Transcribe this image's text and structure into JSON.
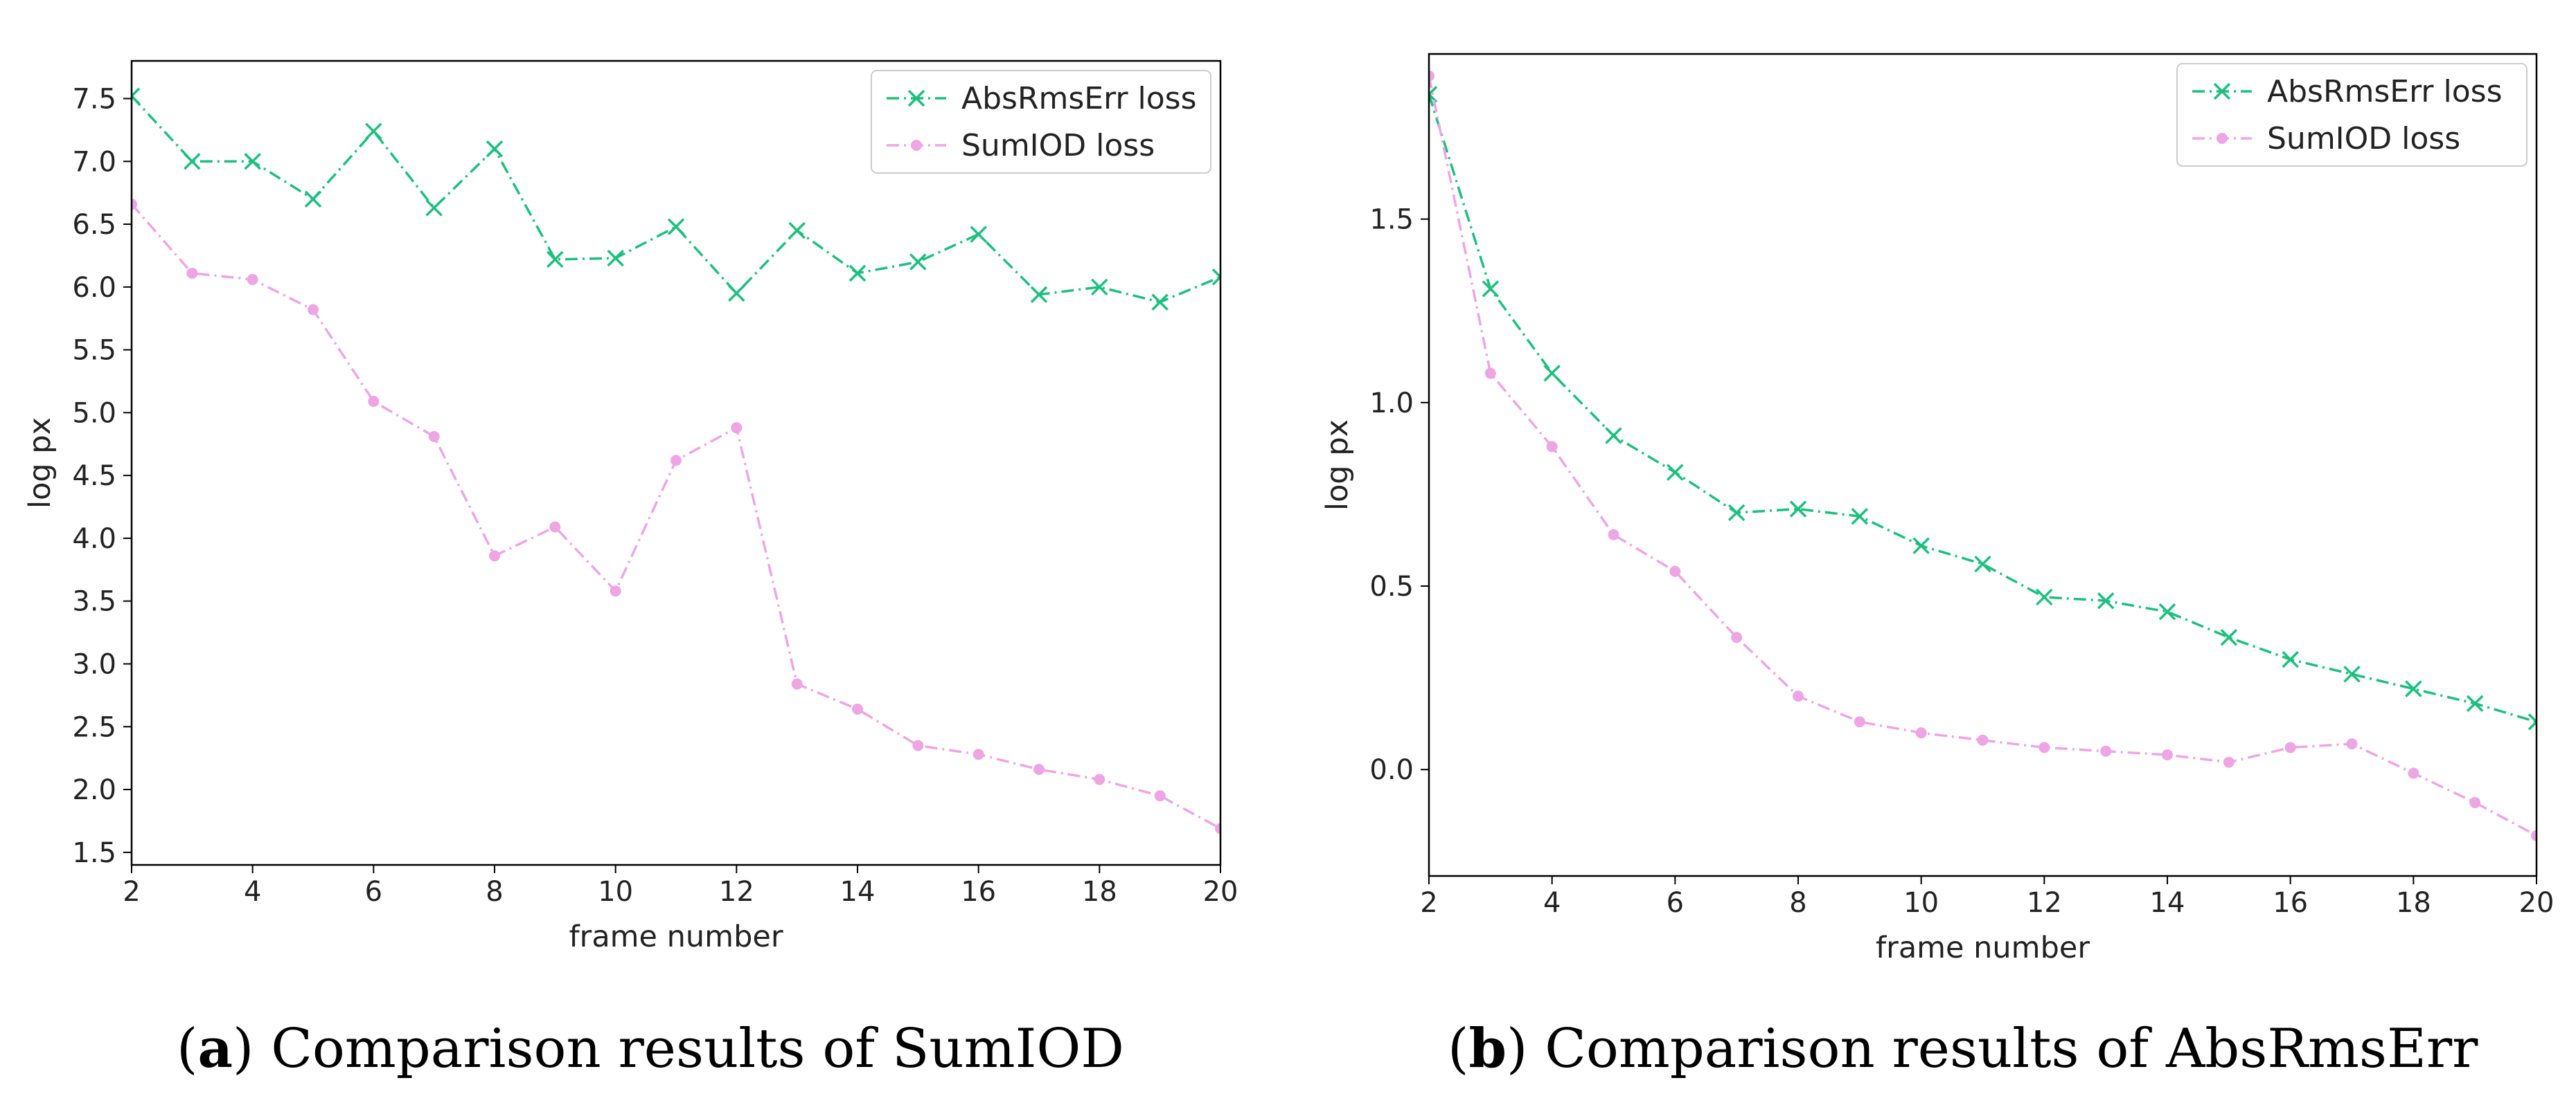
{
  "chart_data": [
    {
      "type": "line",
      "title": "",
      "xlabel": "frame number",
      "ylabel": "log px",
      "xlim": [
        2,
        20
      ],
      "ylim": [
        1.4,
        7.8
      ],
      "xticks": [
        2,
        4,
        6,
        8,
        10,
        12,
        14,
        16,
        18,
        20
      ],
      "yticks": [
        1.5,
        2.0,
        2.5,
        3.0,
        3.5,
        4.0,
        4.5,
        5.0,
        5.5,
        6.0,
        6.5,
        7.0,
        7.5
      ],
      "ytick_decimals": 1,
      "x": [
        2,
        3,
        4,
        5,
        6,
        7,
        8,
        9,
        10,
        11,
        12,
        13,
        14,
        15,
        16,
        17,
        18,
        19,
        20
      ],
      "legend_position": "top-right",
      "series": [
        {
          "name": "AbsRmsErr loss",
          "color": "#1dbf7e",
          "marker": "x",
          "values": [
            7.52,
            7.0,
            7.0,
            6.7,
            7.24,
            6.63,
            7.1,
            6.22,
            6.23,
            6.48,
            5.95,
            6.45,
            6.11,
            6.2,
            6.42,
            5.94,
            6.0,
            5.88,
            6.08
          ]
        },
        {
          "name": "SumIOD loss",
          "color": "#eda6e3",
          "marker": "o",
          "values": [
            6.66,
            6.11,
            6.06,
            5.82,
            5.09,
            4.81,
            3.86,
            4.09,
            3.58,
            4.62,
            4.88,
            2.84,
            2.64,
            2.35,
            2.28,
            2.16,
            2.08,
            1.95,
            1.69
          ]
        }
      ],
      "caption": {
        "letter": "a",
        "text": "Comparison results of SumIOD"
      }
    },
    {
      "type": "line",
      "title": "",
      "xlabel": "frame number",
      "ylabel": "log px",
      "xlim": [
        2,
        20
      ],
      "ylim": [
        -0.29,
        1.95
      ],
      "xticks": [
        2,
        4,
        6,
        8,
        10,
        12,
        14,
        16,
        18,
        20
      ],
      "yticks": [
        0.0,
        0.5,
        1.0,
        1.5
      ],
      "ytick_decimals": 1,
      "x": [
        2,
        3,
        4,
        5,
        6,
        7,
        8,
        9,
        10,
        11,
        12,
        13,
        14,
        15,
        16,
        17,
        18,
        19,
        20
      ],
      "legend_position": "top-right",
      "series": [
        {
          "name": "AbsRmsErr loss",
          "color": "#1dbf7e",
          "marker": "x",
          "values": [
            1.84,
            1.31,
            1.08,
            0.91,
            0.81,
            0.7,
            0.71,
            0.69,
            0.61,
            0.56,
            0.47,
            0.46,
            0.43,
            0.36,
            0.3,
            0.26,
            0.22,
            0.18,
            0.13
          ]
        },
        {
          "name": "SumIOD loss",
          "color": "#eda6e3",
          "marker": "o",
          "values": [
            1.89,
            1.08,
            0.88,
            0.64,
            0.54,
            0.36,
            0.2,
            0.13,
            0.1,
            0.08,
            0.06,
            0.05,
            0.04,
            0.02,
            0.06,
            0.07,
            -0.01,
            -0.09,
            -0.18
          ]
        }
      ],
      "caption": {
        "letter": "b",
        "text": "Comparison results of AbsRmsErr"
      }
    }
  ]
}
